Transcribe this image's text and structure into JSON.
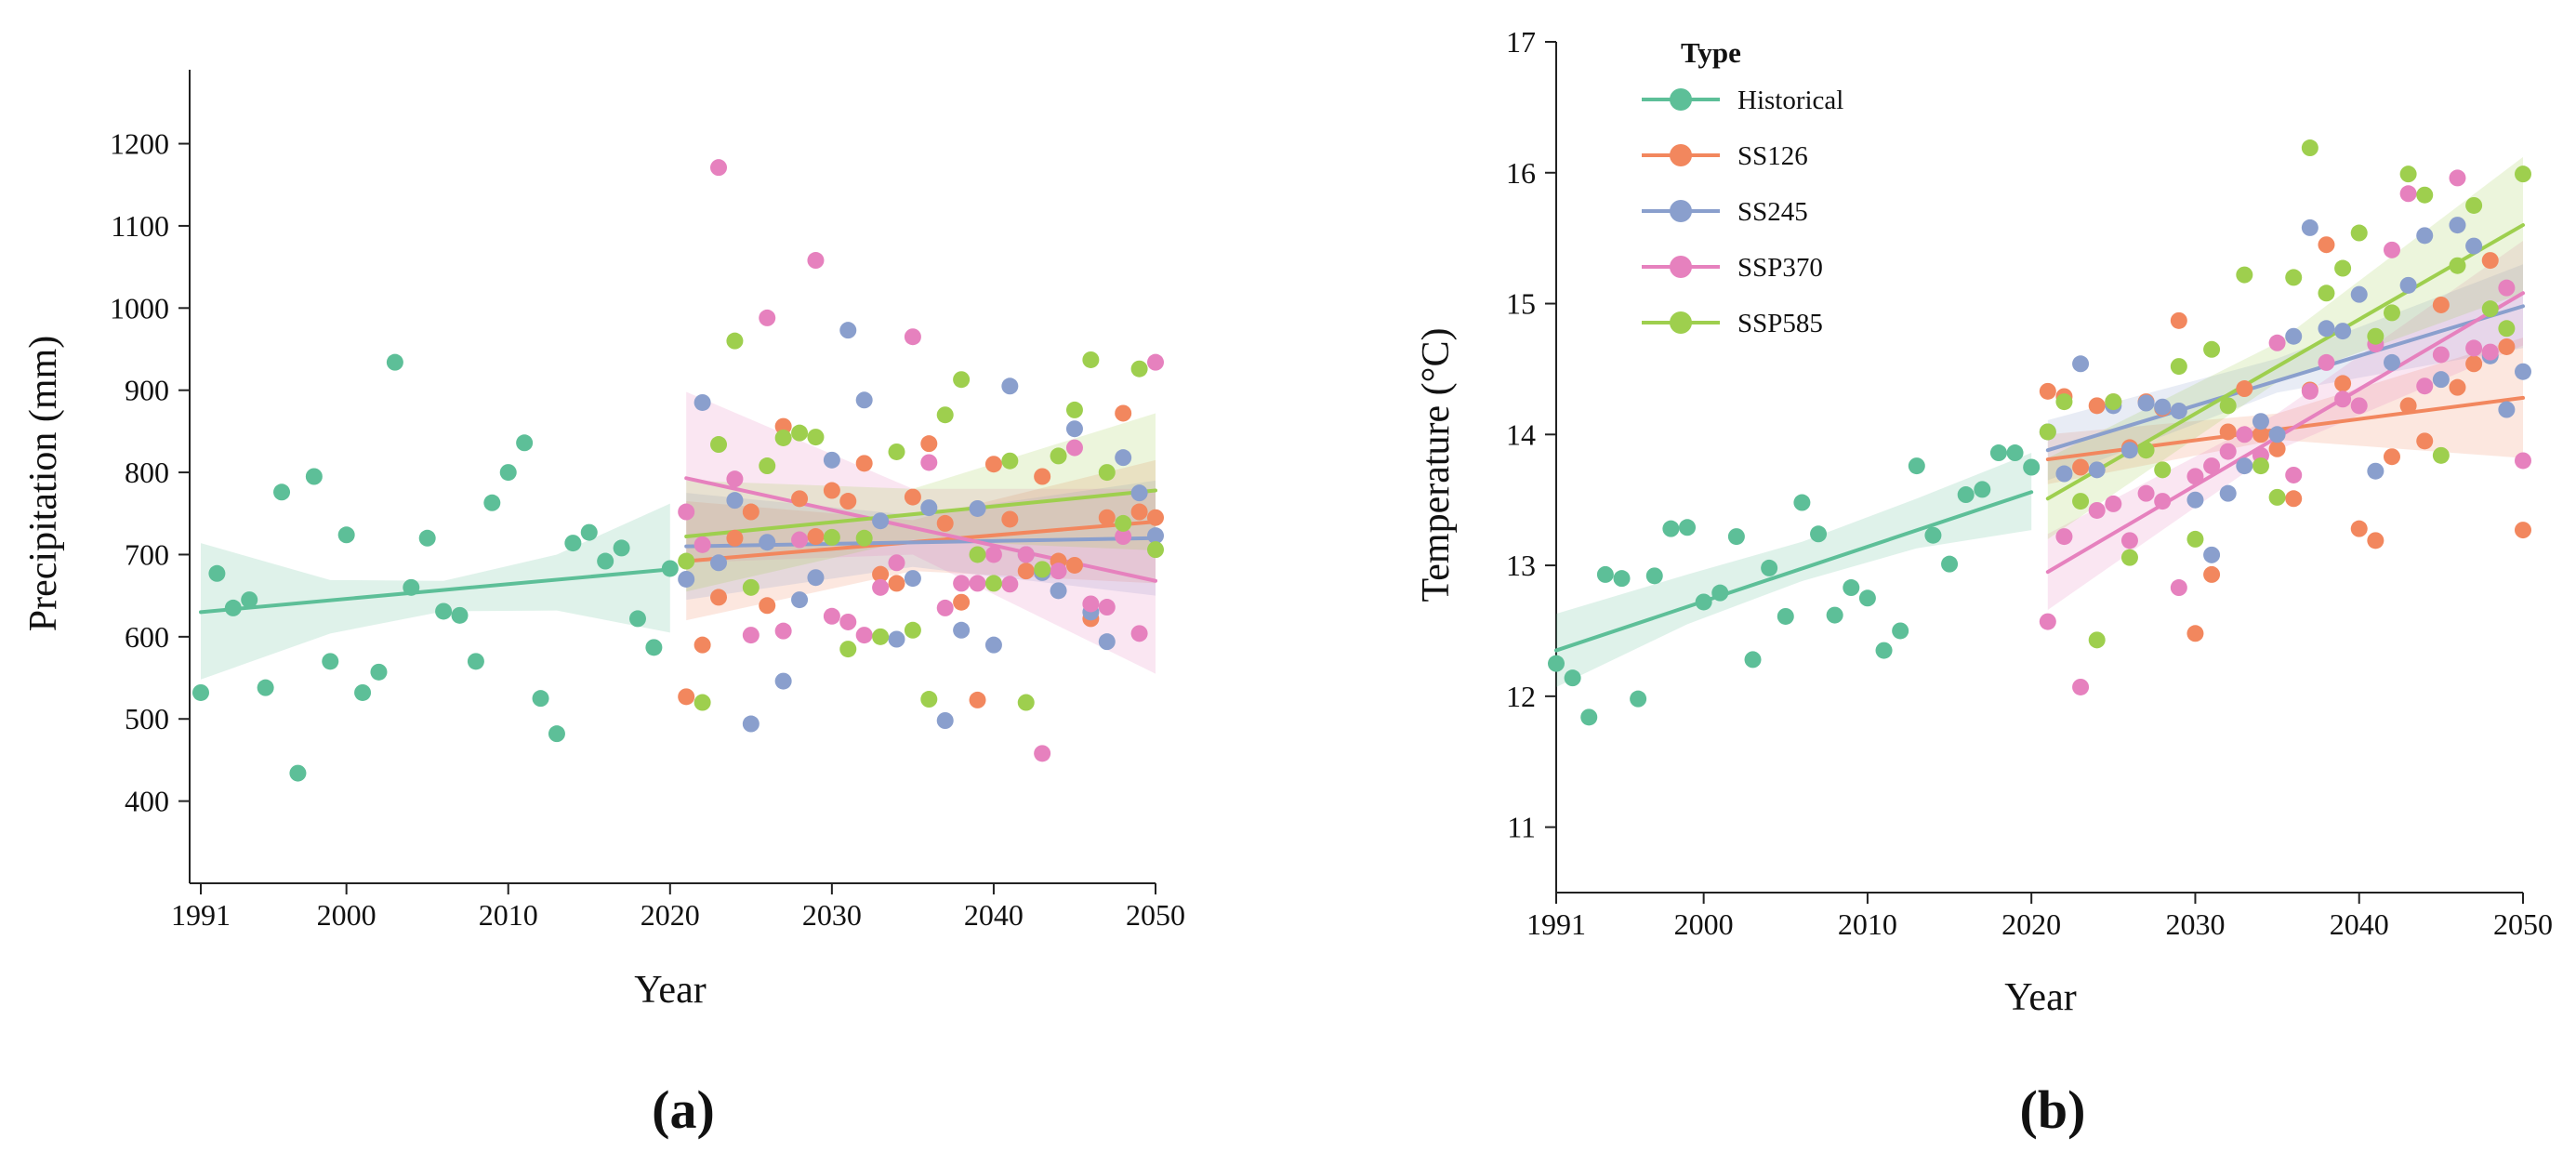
{
  "colors": {
    "Historical": "#5dbf98",
    "SS126": "#f2875e",
    "SS245": "#8a9fcd",
    "SSP370": "#e681be",
    "SSP585": "#9ecf4e"
  },
  "legend": {
    "title": "Type",
    "items": [
      "Historical",
      "SS126",
      "SS245",
      "SSP370",
      "SSP585"
    ]
  },
  "chart_data": [
    {
      "id": "a",
      "panel_label": "(a)",
      "type": "scatter",
      "title": "",
      "xlabel": "Year",
      "ylabel": "Precipitation (mm)",
      "xlim": [
        1991,
        2050
      ],
      "ylim": [
        300,
        1290
      ],
      "xticks": [
        1991,
        2000,
        2010,
        2020,
        2030,
        2040,
        2050
      ],
      "yticks": [
        400,
        500,
        600,
        700,
        800,
        900,
        1000,
        1100,
        1200
      ],
      "series": [
        {
          "name": "Historical",
          "x": [
            1991,
            1992,
            1993,
            1994,
            1995,
            1996,
            1997,
            1998,
            1999,
            2000,
            2001,
            2002,
            2003,
            2004,
            2005,
            2006,
            2007,
            2008,
            2009,
            2010,
            2011,
            2012,
            2013,
            2014,
            2015,
            2016,
            2017,
            2018,
            2019,
            2020
          ],
          "y": [
            532,
            677,
            635,
            645,
            538,
            776,
            434,
            795,
            570,
            724,
            532,
            557,
            934,
            660,
            720,
            631,
            626,
            570,
            763,
            800,
            836,
            525,
            482,
            714,
            727,
            692,
            708,
            622,
            587,
            683
          ],
          "fit": {
            "x": [
              1991,
              2020
            ],
            "y": [
              630,
              682
            ]
          },
          "band": {
            "x": [
              1991,
              1999,
              2006,
              2013,
              2020
            ],
            "lower": [
              548,
              604,
              631,
              632,
              605
            ],
            "upper": [
              714,
              669,
              668,
              700,
              762
            ]
          }
        },
        {
          "name": "SS126",
          "x": [
            2021,
            2022,
            2023,
            2024,
            2025,
            2026,
            2027,
            2028,
            2029,
            2030,
            2031,
            2032,
            2033,
            2034,
            2035,
            2036,
            2037,
            2038,
            2039,
            2040,
            2041,
            2042,
            2043,
            2044,
            2045,
            2046,
            2047,
            2048,
            2049,
            2050
          ],
          "y": [
            527,
            590,
            648,
            720,
            752,
            638,
            856,
            768,
            722,
            778,
            765,
            811,
            676,
            665,
            770,
            835,
            738,
            642,
            523,
            810,
            743,
            680,
            795,
            692,
            687,
            622,
            745,
            872,
            752,
            745
          ],
          "fit": {
            "x": [
              2021,
              2050
            ],
            "y": [
              692,
              740
            ]
          },
          "band": {
            "x": [
              2021,
              2035,
              2050
            ],
            "lower": [
              620,
              680,
              665
            ],
            "upper": [
              765,
              742,
              815
            ]
          }
        },
        {
          "name": "SS245",
          "x": [
            2021,
            2022,
            2023,
            2024,
            2025,
            2026,
            2027,
            2028,
            2029,
            2030,
            2031,
            2032,
            2033,
            2034,
            2035,
            2036,
            2037,
            2038,
            2039,
            2040,
            2041,
            2042,
            2043,
            2044,
            2045,
            2046,
            2047,
            2048,
            2049,
            2050
          ],
          "y": [
            670,
            885,
            690,
            766,
            494,
            715,
            546,
            645,
            672,
            815,
            973,
            888,
            741,
            597,
            671,
            757,
            498,
            608,
            756,
            590,
            905,
            700,
            678,
            656,
            853,
            630,
            594,
            818,
            775,
            723
          ],
          "fit": {
            "x": [
              2021,
              2050
            ],
            "y": [
              710,
              720
            ]
          },
          "band": {
            "x": [
              2021,
              2035,
              2050
            ],
            "lower": [
              645,
              685,
              650
            ],
            "upper": [
              775,
              748,
              790
            ]
          }
        },
        {
          "name": "SSP370",
          "x": [
            2021,
            2022,
            2023,
            2024,
            2025,
            2026,
            2027,
            2028,
            2029,
            2030,
            2031,
            2032,
            2033,
            2034,
            2035,
            2036,
            2037,
            2038,
            2039,
            2040,
            2041,
            2042,
            2043,
            2044,
            2045,
            2046,
            2047,
            2048,
            2049,
            2050
          ],
          "y": [
            752,
            712,
            1171,
            792,
            602,
            988,
            607,
            718,
            1058,
            625,
            618,
            602,
            660,
            690,
            965,
            812,
            635,
            665,
            665,
            700,
            664,
            700,
            458,
            680,
            830,
            640,
            636,
            722,
            604,
            934
          ],
          "fit": {
            "x": [
              2021,
              2050
            ],
            "y": [
              793,
              668
            ]
          },
          "band": {
            "x": [
              2021,
              2035,
              2050
            ],
            "lower": [
              690,
              700,
              555
            ],
            "upper": [
              898,
              780,
              780
            ]
          }
        },
        {
          "name": "SSP585",
          "x": [
            2021,
            2022,
            2023,
            2024,
            2025,
            2026,
            2027,
            2028,
            2029,
            2030,
            2031,
            2032,
            2033,
            2034,
            2035,
            2036,
            2037,
            2038,
            2039,
            2040,
            2041,
            2042,
            2043,
            2044,
            2045,
            2046,
            2047,
            2048,
            2049,
            2050
          ],
          "y": [
            692,
            520,
            834,
            960,
            660,
            808,
            842,
            848,
            843,
            721,
            585,
            720,
            600,
            825,
            608,
            524,
            870,
            913,
            700,
            665,
            814,
            520,
            682,
            820,
            876,
            937,
            800,
            738,
            926,
            706
          ],
          "fit": {
            "x": [
              2021,
              2050
            ],
            "y": [
              722,
              778
            ]
          },
          "band": {
            "x": [
              2021,
              2035,
              2050
            ],
            "lower": [
              655,
              718,
              705
            ],
            "upper": [
              790,
              780,
              872
            ]
          }
        }
      ]
    },
    {
      "id": "b",
      "panel_label": "(b)",
      "type": "scatter",
      "title": "",
      "xlabel": "Year",
      "ylabel": "Temperature (°C)",
      "xlim": [
        1991,
        2050
      ],
      "ylim": [
        10.5,
        17
      ],
      "xticks": [
        1991,
        2000,
        2010,
        2020,
        2030,
        2040,
        2050
      ],
      "yticks": [
        11,
        12,
        13,
        14,
        15,
        16,
        17
      ],
      "series": [
        {
          "name": "Historical",
          "x": [
            1991,
            1992,
            1993,
            1994,
            1995,
            1996,
            1997,
            1998,
            1999,
            2000,
            2001,
            2002,
            2003,
            2004,
            2005,
            2006,
            2007,
            2008,
            2009,
            2010,
            2011,
            2012,
            2013,
            2014,
            2015,
            2016,
            2017,
            2018,
            2019,
            2020
          ],
          "y": [
            12.25,
            12.14,
            11.84,
            12.93,
            12.9,
            11.98,
            12.92,
            13.28,
            13.29,
            12.72,
            12.79,
            13.22,
            12.28,
            12.98,
            12.61,
            13.48,
            13.24,
            12.62,
            12.83,
            12.75,
            12.35,
            12.5,
            13.76,
            13.23,
            13.01,
            13.54,
            13.58,
            13.86,
            13.86,
            13.75
          ],
          "fit": {
            "x": [
              1991,
              2020
            ],
            "y": [
              12.35,
              13.56
            ]
          },
          "band": {
            "x": [
              1991,
              1999,
              2006,
              2013,
              2020
            ],
            "lower": [
              12.07,
              12.55,
              12.88,
              13.13,
              13.27
            ],
            "upper": [
              12.63,
              12.93,
              13.18,
              13.51,
              13.86
            ]
          }
        },
        {
          "name": "SS126",
          "x": [
            2021,
            2022,
            2023,
            2024,
            2025,
            2026,
            2027,
            2028,
            2029,
            2030,
            2031,
            2032,
            2033,
            2034,
            2035,
            2036,
            2037,
            2038,
            2039,
            2040,
            2041,
            2042,
            2043,
            2044,
            2045,
            2046,
            2047,
            2048,
            2049,
            2050
          ],
          "y": [
            14.33,
            14.29,
            13.75,
            14.22,
            14.25,
            13.9,
            14.25,
            14.2,
            14.87,
            12.48,
            12.93,
            14.02,
            14.35,
            14.0,
            13.89,
            13.51,
            14.34,
            15.45,
            14.39,
            13.28,
            13.19,
            13.83,
            14.22,
            13.95,
            14.99,
            14.36,
            14.54,
            15.33,
            14.67,
            13.27
          ],
          "fit": {
            "x": [
              2021,
              2050
            ],
            "y": [
              13.81,
              14.28
            ]
          },
          "band": {
            "x": [
              2021,
              2035,
              2050
            ],
            "lower": [
              13.62,
              13.96,
              13.82
            ],
            "upper": [
              14.0,
              14.16,
              14.74
            ]
          }
        },
        {
          "name": "SS245",
          "x": [
            2021,
            2022,
            2023,
            2024,
            2025,
            2026,
            2027,
            2028,
            2029,
            2030,
            2031,
            2032,
            2033,
            2034,
            2035,
            2036,
            2037,
            2038,
            2039,
            2040,
            2041,
            2042,
            2043,
            2044,
            2045,
            2046,
            2047,
            2048,
            2049,
            2050
          ],
          "y": [
            14.02,
            13.7,
            14.54,
            13.73,
            14.22,
            13.88,
            14.24,
            14.21,
            14.18,
            13.5,
            13.08,
            13.55,
            13.76,
            14.1,
            14.0,
            14.75,
            15.58,
            14.81,
            14.79,
            15.07,
            13.72,
            14.55,
            15.14,
            15.52,
            14.42,
            15.6,
            15.44,
            14.6,
            14.19,
            14.48
          ],
          "fit": {
            "x": [
              2021,
              2050
            ],
            "y": [
              13.88,
              14.98
            ]
          },
          "band": {
            "x": [
              2021,
              2035,
              2050
            ],
            "lower": [
              13.65,
              14.32,
              14.66
            ],
            "upper": [
              14.11,
              14.58,
              15.3
            ]
          }
        },
        {
          "name": "SSP370",
          "x": [
            2021,
            2022,
            2023,
            2024,
            2025,
            2026,
            2027,
            2028,
            2029,
            2030,
            2031,
            2032,
            2033,
            2034,
            2035,
            2036,
            2037,
            2038,
            2039,
            2040,
            2041,
            2042,
            2043,
            2044,
            2045,
            2046,
            2047,
            2048,
            2049,
            2050
          ],
          "y": [
            12.57,
            13.22,
            12.07,
            13.42,
            13.47,
            13.19,
            13.55,
            13.49,
            12.83,
            13.68,
            13.76,
            13.87,
            14.0,
            13.84,
            14.7,
            13.69,
            14.33,
            14.55,
            14.27,
            14.22,
            14.69,
            15.41,
            15.84,
            14.37,
            14.61,
            15.96,
            14.66,
            14.63,
            15.12,
            13.8
          ],
          "fit": {
            "x": [
              2021,
              2050
            ],
            "y": [
              12.95,
              15.08
            ]
          },
          "band": {
            "x": [
              2021,
              2035,
              2050
            ],
            "lower": [
              12.66,
              13.88,
              14.68
            ],
            "upper": [
              13.24,
              14.16,
              15.48
            ]
          }
        },
        {
          "name": "SSP585",
          "x": [
            2021,
            2022,
            2023,
            2024,
            2025,
            2026,
            2027,
            2028,
            2029,
            2030,
            2031,
            2032,
            2033,
            2034,
            2035,
            2036,
            2037,
            2038,
            2039,
            2040,
            2041,
            2042,
            2043,
            2044,
            2045,
            2046,
            2047,
            2048,
            2049,
            2050
          ],
          "y": [
            14.02,
            14.25,
            13.49,
            12.43,
            14.25,
            13.06,
            13.88,
            13.73,
            14.52,
            13.2,
            14.65,
            14.22,
            15.22,
            13.76,
            13.52,
            15.2,
            16.19,
            15.08,
            15.27,
            15.54,
            14.75,
            14.93,
            15.99,
            15.83,
            13.84,
            15.29,
            15.75,
            14.96,
            14.81,
            15.99
          ],
          "fit": {
            "x": [
              2021,
              2050
            ],
            "y": [
              13.51,
              15.6
            ]
          },
          "band": {
            "x": [
              2021,
              2035,
              2050
            ],
            "lower": [
              13.2,
              14.4,
              15.08
            ],
            "upper": [
              13.82,
              14.7,
              16.12
            ]
          }
        }
      ]
    }
  ]
}
